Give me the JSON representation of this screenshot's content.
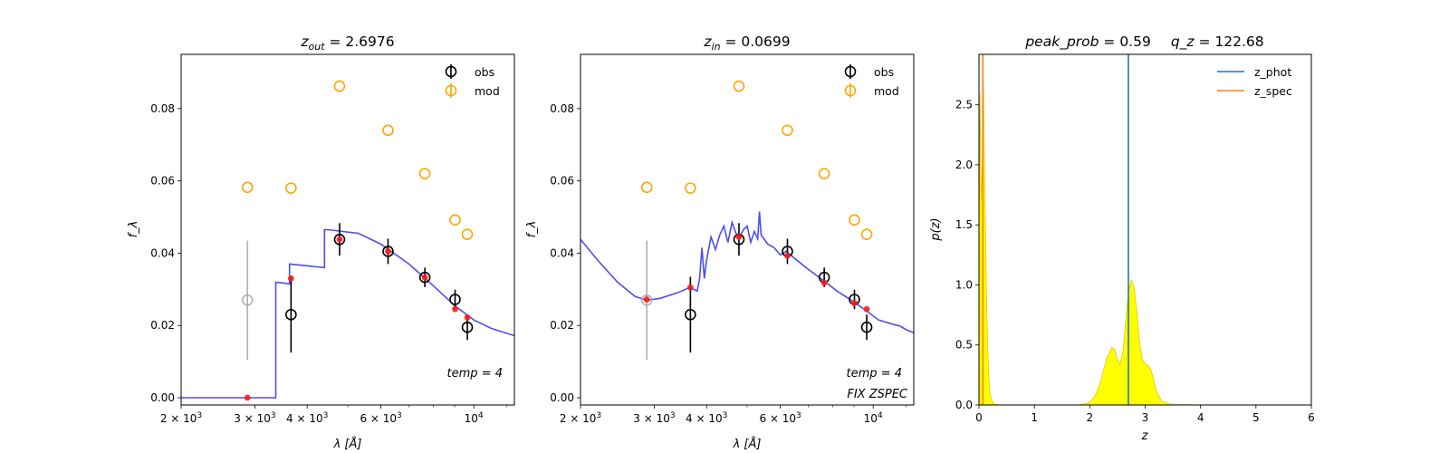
{
  "colors": {
    "model_line": "#3b3bf0",
    "obs_marker": "#000000",
    "obs_missing": "#b0b0b0",
    "mod_marker": "#ffa500",
    "model_point": "#ff1a1a",
    "z_phot": "#1f77b4",
    "z_spec": "#ff7f0e",
    "pz_fill": "#ffff00",
    "pz_edge": "#e6c800"
  },
  "chart_data": [
    {
      "type": "scatter",
      "title": {
        "var": "z",
        "sub": "out",
        "rest": " = 2.6976"
      },
      "xlabel": "λ [Å]",
      "ylabel": "f_λ",
      "x_scale": "log",
      "xlim": [
        2000,
        12500
      ],
      "ylim": [
        -0.002,
        0.095
      ],
      "x_ticks": [
        {
          "value": 2000,
          "base": "2 × 10",
          "exp": "3"
        },
        {
          "value": 3000,
          "base": "3 × 10",
          "exp": "3"
        },
        {
          "value": 4000,
          "base": "4 × 10",
          "exp": "3"
        },
        {
          "value": 6000,
          "base": "6 × 10",
          "exp": "3"
        },
        {
          "value": 10000,
          "base": "10",
          "exp": "4"
        }
      ],
      "y_ticks": [
        "0.00",
        "0.02",
        "0.04",
        "0.06",
        "0.08"
      ],
      "y_tick_values": [
        0.0,
        0.02,
        0.04,
        0.06,
        0.08
      ],
      "legend": {
        "position": "top-right",
        "entries": [
          "obs",
          "mod"
        ]
      },
      "annotations": [
        "temp = 4"
      ],
      "obs": [
        {
          "x": 2880,
          "y": 0.027,
          "err": 0.0165,
          "missing": true
        },
        {
          "x": 3660,
          "y": 0.023,
          "err": 0.0105
        },
        {
          "x": 4780,
          "y": 0.0438,
          "err": 0.0045
        },
        {
          "x": 6240,
          "y": 0.0405,
          "err": 0.0035
        },
        {
          "x": 7640,
          "y": 0.0333,
          "err": 0.0027
        },
        {
          "x": 9020,
          "y": 0.0272,
          "err": 0.0027
        },
        {
          "x": 9650,
          "y": 0.0195,
          "err": 0.0035
        }
      ],
      "mod": [
        {
          "x": 2880,
          "y": 0.0582
        },
        {
          "x": 3660,
          "y": 0.058
        },
        {
          "x": 4780,
          "y": 0.0862
        },
        {
          "x": 6240,
          "y": 0.074
        },
        {
          "x": 7640,
          "y": 0.062
        },
        {
          "x": 9020,
          "y": 0.0492
        },
        {
          "x": 9650,
          "y": 0.0452
        }
      ],
      "model_points": [
        {
          "x": 2880,
          "y": 0.0
        },
        {
          "x": 3660,
          "y": 0.033
        },
        {
          "x": 4780,
          "y": 0.0438
        },
        {
          "x": 6240,
          "y": 0.0405
        },
        {
          "x": 7640,
          "y": 0.0333
        },
        {
          "x": 9020,
          "y": 0.0245
        },
        {
          "x": 9650,
          "y": 0.0222
        }
      ],
      "model_curve": {
        "x": [
          2000,
          3150,
          3150,
          3365,
          3365,
          3630,
          3630,
          4400,
          4400,
          4480,
          5300,
          6000,
          7000,
          8000,
          9000,
          10000,
          11000,
          12000,
          12500
        ],
        "y": [
          0.0,
          0.0,
          0.0,
          0.0,
          0.032,
          0.0315,
          0.037,
          0.036,
          0.0465,
          0.0465,
          0.0455,
          0.0425,
          0.037,
          0.031,
          0.0255,
          0.0215,
          0.0192,
          0.0178,
          0.0172
        ]
      }
    },
    {
      "type": "scatter",
      "title": {
        "var": "z",
        "sub": "in",
        "rest": " = 0.0699"
      },
      "xlabel": "λ [Å]",
      "ylabel": "f_λ",
      "x_scale": "log",
      "xlim": [
        2000,
        12500
      ],
      "ylim": [
        -0.002,
        0.095
      ],
      "x_ticks": [
        {
          "value": 2000,
          "base": "2 × 10",
          "exp": "3"
        },
        {
          "value": 3000,
          "base": "3 × 10",
          "exp": "3"
        },
        {
          "value": 4000,
          "base": "4 × 10",
          "exp": "3"
        },
        {
          "value": 6000,
          "base": "6 × 10",
          "exp": "3"
        },
        {
          "value": 10000,
          "base": "10",
          "exp": "4"
        }
      ],
      "y_ticks": [
        "0.00",
        "0.02",
        "0.04",
        "0.06",
        "0.08"
      ],
      "y_tick_values": [
        0.0,
        0.02,
        0.04,
        0.06,
        0.08
      ],
      "legend": {
        "position": "top-right",
        "entries": [
          "obs",
          "mod"
        ]
      },
      "annotations": [
        "temp = 4",
        "FIX ZSPEC"
      ],
      "obs": [
        {
          "x": 2880,
          "y": 0.027,
          "err": 0.0165,
          "missing": true
        },
        {
          "x": 3660,
          "y": 0.023,
          "err": 0.0105
        },
        {
          "x": 4780,
          "y": 0.0438,
          "err": 0.0045
        },
        {
          "x": 6240,
          "y": 0.0405,
          "err": 0.0035
        },
        {
          "x": 7640,
          "y": 0.0333,
          "err": 0.0027
        },
        {
          "x": 9020,
          "y": 0.0272,
          "err": 0.0027
        },
        {
          "x": 9650,
          "y": 0.0195,
          "err": 0.0035
        }
      ],
      "mod": [
        {
          "x": 2880,
          "y": 0.0582
        },
        {
          "x": 3660,
          "y": 0.058
        },
        {
          "x": 4780,
          "y": 0.0862
        },
        {
          "x": 6240,
          "y": 0.074
        },
        {
          "x": 7640,
          "y": 0.062
        },
        {
          "x": 9020,
          "y": 0.0492
        },
        {
          "x": 9650,
          "y": 0.0452
        }
      ],
      "model_points": [
        {
          "x": 2880,
          "y": 0.0272
        },
        {
          "x": 3660,
          "y": 0.0305
        },
        {
          "x": 4780,
          "y": 0.0445
        },
        {
          "x": 6240,
          "y": 0.0393
        },
        {
          "x": 7640,
          "y": 0.0318
        },
        {
          "x": 9020,
          "y": 0.0262
        },
        {
          "x": 9650,
          "y": 0.0245
        }
      ],
      "model_curve": {
        "x": [
          2000,
          2200,
          2450,
          2700,
          2880,
          3100,
          3400,
          3650,
          3800,
          3850,
          3900,
          3950,
          4000,
          4100,
          4200,
          4300,
          4400,
          4500,
          4600,
          4700,
          4800,
          4900,
          5000,
          5100,
          5200,
          5300,
          5350,
          5400,
          5600,
          5800,
          6000,
          6200,
          6500,
          7000,
          7600,
          8200,
          9000,
          9700,
          10300,
          11000,
          11600,
          12000,
          12500
        ],
        "y": [
          0.0438,
          0.038,
          0.032,
          0.028,
          0.027,
          0.0275,
          0.029,
          0.0305,
          0.0295,
          0.033,
          0.0415,
          0.033,
          0.038,
          0.0445,
          0.041,
          0.045,
          0.0475,
          0.043,
          0.0485,
          0.0455,
          0.0445,
          0.0465,
          0.0475,
          0.043,
          0.046,
          0.044,
          0.0515,
          0.045,
          0.0425,
          0.0415,
          0.0395,
          0.0405,
          0.0385,
          0.0355,
          0.0325,
          0.0295,
          0.0265,
          0.0238,
          0.0215,
          0.0205,
          0.0198,
          0.0188,
          0.018
        ]
      }
    },
    {
      "type": "area",
      "title_parts": [
        {
          "italic": "peak_prob",
          "rest": " = 0.59"
        },
        {
          "italic": "q_z",
          "rest": " = 122.68"
        }
      ],
      "xlabel": "z",
      "ylabel": "p(z)",
      "xlim": [
        0,
        6
      ],
      "ylim": [
        0,
        2.92
      ],
      "x_ticks": [
        "0",
        "1",
        "2",
        "3",
        "4",
        "5",
        "6"
      ],
      "x_tick_values": [
        0,
        1,
        2,
        3,
        4,
        5,
        6
      ],
      "y_ticks": [
        "0.0",
        "0.5",
        "1.0",
        "1.5",
        "2.0",
        "2.5"
      ],
      "y_tick_values": [
        0.0,
        0.5,
        1.0,
        1.5,
        2.0,
        2.5
      ],
      "legend": {
        "position": "top-right",
        "entries": [
          "z_phot",
          "z_spec"
        ]
      },
      "z_phot": 2.6976,
      "z_spec": 0.0699,
      "pz": {
        "x": [
          0.0,
          0.02,
          0.04,
          0.06,
          0.08,
          0.1,
          0.12,
          0.14,
          0.16,
          0.18,
          0.2,
          0.22,
          0.25,
          0.3,
          0.4,
          1.8,
          2.0,
          2.1,
          2.2,
          2.3,
          2.4,
          2.45,
          2.5,
          2.55,
          2.6,
          2.65,
          2.7,
          2.75,
          2.8,
          2.85,
          2.9,
          2.95,
          3.0,
          3.05,
          3.1,
          3.15,
          3.2,
          3.3,
          3.5,
          5.0
        ],
        "y": [
          1.4,
          2.6,
          1.7,
          2.0,
          2.68,
          2.0,
          1.4,
          0.8,
          0.45,
          0.22,
          0.1,
          0.05,
          0.02,
          0.005,
          0.0,
          0.0,
          0.02,
          0.08,
          0.2,
          0.38,
          0.48,
          0.46,
          0.38,
          0.34,
          0.45,
          0.7,
          0.95,
          1.04,
          0.98,
          0.78,
          0.52,
          0.38,
          0.34,
          0.33,
          0.3,
          0.22,
          0.12,
          0.03,
          0.002,
          0.0
        ]
      }
    }
  ]
}
